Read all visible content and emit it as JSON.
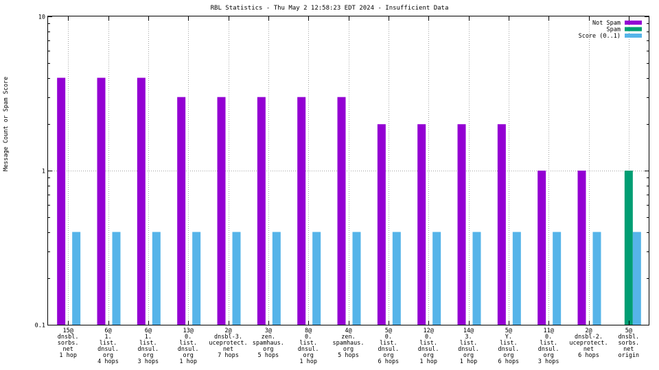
{
  "chart_data": {
    "type": "bar",
    "title": "RBL Statistics - Thu May  2 12:58:23 EDT 2024 - Insufficient Data",
    "xlabel": "",
    "ylabel": "Message Count or Spam Score",
    "y_scale": "log",
    "ylim": [
      0.1,
      10
    ],
    "y_ticks": [
      "0.1",
      "1",
      "10"
    ],
    "grid": true,
    "legend_position": "top-right",
    "categories": [
      [
        "15@",
        "dnsbl.",
        "sorbs.",
        "net",
        "1 hop"
      ],
      [
        "6@",
        "1.",
        "list.",
        "dnsul.",
        "org",
        "4 hops"
      ],
      [
        "6@",
        "1.",
        "list.",
        "dnsul.",
        "org",
        "3 hops"
      ],
      [
        "13@",
        "0.",
        "list.",
        "dnsul.",
        "org",
        "1 hop"
      ],
      [
        "2@",
        "dnsbl-3.",
        "uceprotect.",
        "net",
        "7 hops"
      ],
      [
        "3@",
        "zen.",
        "spamhaus.",
        "org",
        "5 hops"
      ],
      [
        "8@",
        "0.",
        "list.",
        "dnsul.",
        "org",
        "1 hop"
      ],
      [
        "4@",
        "zen.",
        "spamhaus.",
        "org",
        "5 hops"
      ],
      [
        "5@",
        "0.",
        "list.",
        "dnsul.",
        "org",
        "6 hops"
      ],
      [
        "12@",
        "0.",
        "list.",
        "dnsul.",
        "org",
        "1 hop"
      ],
      [
        "14@",
        "3.",
        "list.",
        "dnsul.",
        "org",
        "1 hop"
      ],
      [
        "5@",
        "Y.",
        "list.",
        "dnsul.",
        "org",
        "6 hops"
      ],
      [
        "11@",
        "0.",
        "list.",
        "dnsul.",
        "org",
        "3 hops"
      ],
      [
        "2@",
        "dnsbl-2.",
        "uceprotect.",
        "net",
        "6 hops"
      ],
      [
        "5@",
        "dnsbl.",
        "sorbs.",
        "net",
        "origin"
      ]
    ],
    "series": [
      {
        "name": "Not Spam",
        "color": "#9400d3",
        "values": [
          4,
          4,
          4,
          3,
          3,
          3,
          3,
          3,
          2,
          2,
          2,
          2,
          1,
          1,
          null
        ]
      },
      {
        "name": "Spam",
        "color": "#009e73",
        "values": [
          null,
          null,
          null,
          null,
          null,
          null,
          null,
          null,
          null,
          null,
          null,
          null,
          null,
          null,
          1
        ]
      },
      {
        "name": "Score (0..1)",
        "color": "#56b4e9",
        "values": [
          0.4,
          0.4,
          0.4,
          0.4,
          0.4,
          0.4,
          0.4,
          0.4,
          0.4,
          0.4,
          0.4,
          0.4,
          0.4,
          0.4,
          0.4
        ]
      }
    ]
  }
}
